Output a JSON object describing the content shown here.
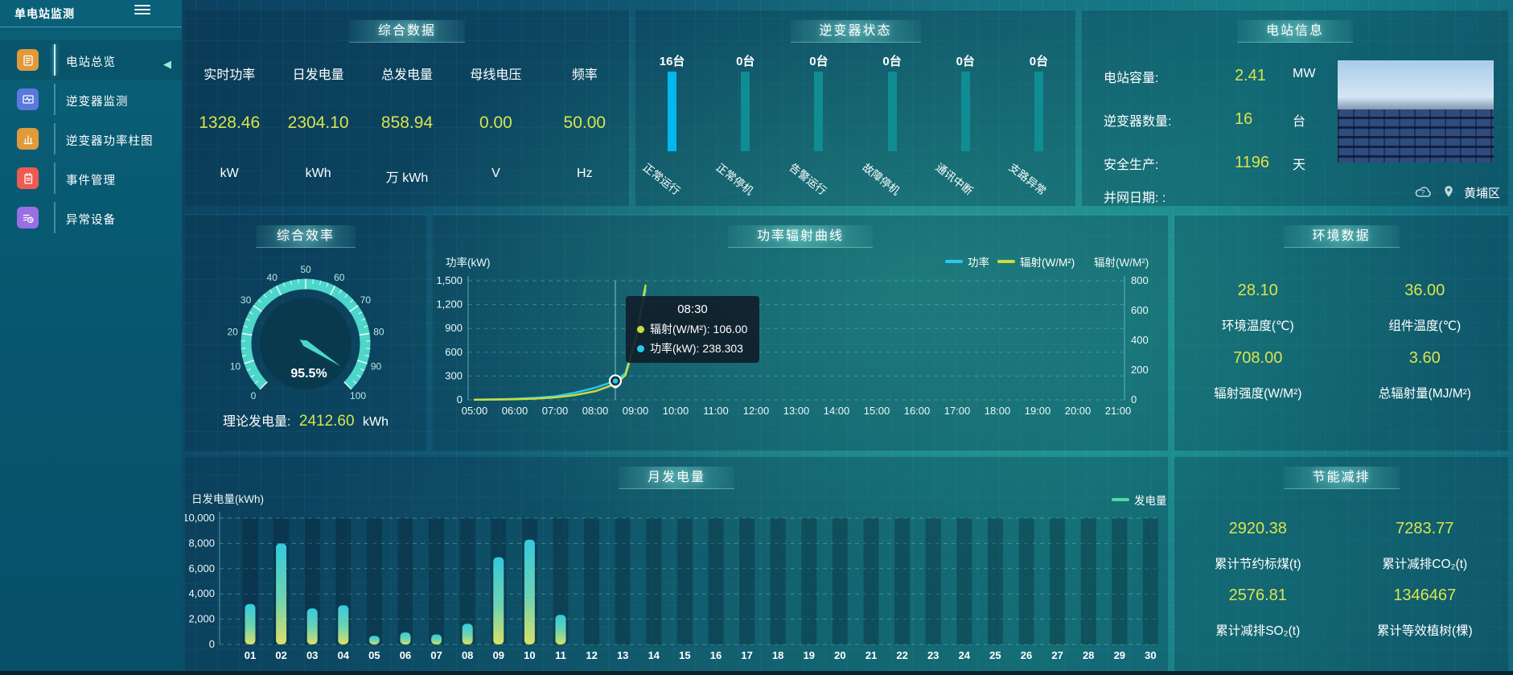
{
  "app": {
    "title": "单电站监测",
    "location": "黄埔区"
  },
  "sidebar": {
    "items": [
      {
        "label": "电站总览",
        "icon": "doc-icon",
        "color": "#e09a3a",
        "active": true
      },
      {
        "label": "逆变器监测",
        "icon": "monitor-icon",
        "color": "#5b78de",
        "active": false
      },
      {
        "label": "逆变器功率柱图",
        "icon": "bar-chart-icon",
        "color": "#e09a3a",
        "active": false
      },
      {
        "label": "事件管理",
        "icon": "notebook-icon",
        "color": "#ee5a4f",
        "active": false
      },
      {
        "label": "异常设备",
        "icon": "device-icon",
        "color": "#9a6fe6",
        "active": false
      }
    ]
  },
  "overview_panel": {
    "title": "综合数据",
    "metrics": [
      {
        "label": "实时功率",
        "value": "1328.46",
        "unit": "kW"
      },
      {
        "label": "日发电量",
        "value": "2304.10",
        "unit": "kWh"
      },
      {
        "label": "总发电量",
        "value": "858.94",
        "unit": "万 kWh"
      },
      {
        "label": "母线电压",
        "value": "0.00",
        "unit": "V"
      },
      {
        "label": "频率",
        "value": "50.00",
        "unit": "Hz"
      }
    ]
  },
  "station_panel": {
    "title": "电站信息",
    "rows": [
      {
        "label": "电站容量:",
        "value": "2.41",
        "unit": "MW"
      },
      {
        "label": "逆变器数量:",
        "value": "16",
        "unit": "台"
      },
      {
        "label": "安全生产:",
        "value": "1196",
        "unit": "天"
      },
      {
        "label": "并网日期: :",
        "value": "",
        "unit": ""
      }
    ]
  },
  "efficiency_panel": {
    "title": "综合效率",
    "display": "95.5%",
    "theory_label": "理论发电量:",
    "theory_value": "2412.60",
    "theory_unit": "kWh"
  },
  "line_panel": {
    "title": "功率辐射曲线",
    "tooltip": {
      "time": "08:30",
      "rows": [
        {
          "color": "#cbdc3c",
          "text": "辐射(W/M²): 106.00"
        },
        {
          "color": "#29c8f0",
          "text": "功率(kW): 238.303"
        }
      ]
    }
  },
  "env_panel": {
    "title": "环境数据",
    "metrics": [
      {
        "value": "28.10",
        "label": "环境温度(℃)"
      },
      {
        "value": "36.00",
        "label": "组件温度(℃)"
      },
      {
        "value": "708.00",
        "label": "辐射强度(W/M²)"
      },
      {
        "value": "3.60",
        "label": "总辐射量(MJ/M²)"
      }
    ]
  },
  "monthly_panel": {
    "title": "月发电量"
  },
  "saving_panel": {
    "title": "节能减排",
    "metrics": [
      {
        "value": "2920.38",
        "label": "累计节约标煤(t)"
      },
      {
        "value": "7283.77",
        "label": "累计减排CO₂(t)"
      },
      {
        "value": "2576.81",
        "label": "累计减排SO₂(t)"
      },
      {
        "value": "1346467",
        "label": "累计等效植树(棵)"
      }
    ]
  },
  "chart_data": [
    {
      "type": "bar",
      "id": "inverter_status",
      "title": "逆变器状态",
      "unit": "台",
      "categories": [
        "正常运行",
        "正常停机",
        "告警运行",
        "故障停机",
        "通讯中断",
        "支路异常"
      ],
      "values": [
        16,
        0,
        0,
        0,
        0,
        0
      ],
      "highlight_color": "#00b7f0",
      "bar_color": "#0f8d93"
    },
    {
      "type": "gauge",
      "id": "overall_efficiency",
      "title": "综合效率",
      "value": 95.5,
      "min": 0,
      "max": 100,
      "display": "95.5%"
    },
    {
      "type": "line",
      "id": "power_radiation_curve",
      "title": "功率辐射曲线",
      "x": [
        "05:00",
        "06:00",
        "07:00",
        "08:00",
        "09:00",
        "10:00",
        "11:00",
        "12:00",
        "13:00",
        "14:00",
        "15:00",
        "16:00",
        "17:00",
        "18:00",
        "19:00",
        "20:00",
        "21:00"
      ],
      "ylabel_left": "功率(kW)",
      "ylabel_right": "辐射(W/M²)",
      "ylim_left": [
        0,
        1500
      ],
      "yticks_left": [
        "0",
        "300",
        "600",
        "900",
        "1,200",
        "1,500"
      ],
      "ylim_right": [
        0,
        800
      ],
      "yticks_right": [
        "0",
        "200",
        "400",
        "600",
        "800"
      ],
      "legend": [
        "功率",
        "辐射(W/M²)"
      ],
      "grid": "dashed",
      "series": [
        {
          "name": "功率",
          "axis": "left",
          "color": "#29c8f0",
          "points": [
            [
              0,
              3
            ],
            [
              0.5,
              6
            ],
            [
              1,
              13
            ],
            [
              1.5,
              25
            ],
            [
              2,
              45
            ],
            [
              2.5,
              90
            ],
            [
              3,
              152
            ],
            [
              3.5,
              238.303
            ],
            [
              3.75,
              335
            ],
            [
              4,
              760
            ],
            [
              4.25,
              1390
            ]
          ]
        },
        {
          "name": "辐射(W/M²)",
          "axis": "right",
          "color": "#cbdc3c",
          "points": [
            [
              0,
              1
            ],
            [
              0.5,
              2
            ],
            [
              1,
              4
            ],
            [
              1.5,
              8
            ],
            [
              2,
              16
            ],
            [
              2.5,
              32
            ],
            [
              3,
              58
            ],
            [
              3.5,
              106
            ],
            [
              3.75,
              165
            ],
            [
              4,
              400
            ],
            [
              4.25,
              768
            ]
          ]
        }
      ],
      "hover": {
        "x": 3.5,
        "time": "08:30",
        "power": 238.303,
        "radiation": 106
      }
    },
    {
      "type": "bar",
      "id": "monthly_energy",
      "title": "月发电量",
      "ylabel": "日发电量(kWh)",
      "ylim": [
        0,
        10000
      ],
      "yticks": [
        "0",
        "2,000",
        "4,000",
        "6,000",
        "8,000",
        "10,000"
      ],
      "legend": "发电量",
      "categories": [
        "01",
        "02",
        "03",
        "04",
        "05",
        "06",
        "07",
        "08",
        "09",
        "10",
        "11",
        "12",
        "13",
        "14",
        "15",
        "16",
        "17",
        "18",
        "19",
        "20",
        "21",
        "22",
        "23",
        "24",
        "25",
        "26",
        "27",
        "28",
        "29",
        "30"
      ],
      "values": [
        3200,
        8000,
        2850,
        3100,
        680,
        950,
        790,
        1640,
        6900,
        8300,
        2340,
        0,
        0,
        0,
        0,
        0,
        0,
        0,
        0,
        0,
        0,
        0,
        0,
        0,
        0,
        0,
        0,
        0,
        0,
        0
      ],
      "bar_gradient": [
        "#34cade",
        "#6fd3b0",
        "#d9e165"
      ]
    }
  ]
}
